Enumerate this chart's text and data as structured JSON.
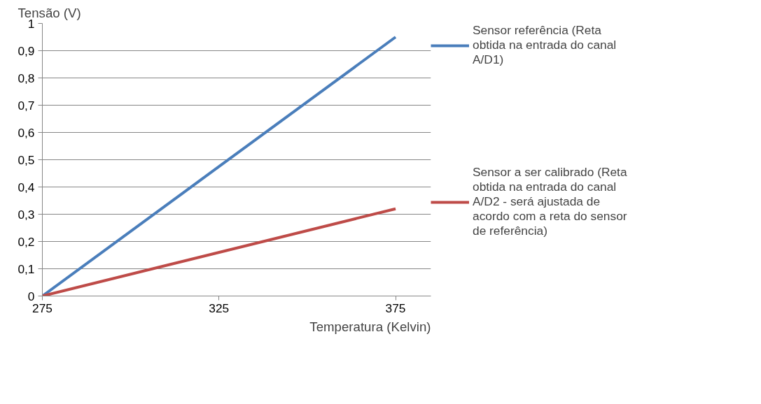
{
  "chart_data": {
    "type": "line",
    "xlabel": "Temperatura (Kelvin)",
    "ylabel": "Tensão (V)",
    "x": [
      275,
      375
    ],
    "series": [
      {
        "name": "Sensor referência (Reta obtida na entrada do canal A/D1)",
        "color": "#4a7ebb",
        "values": [
          0,
          0.95
        ]
      },
      {
        "name": "Sensor a ser calibrado (Reta obtida na entrada do canal A/D2 - será ajustada de acordo com a reta do sensor de referência)",
        "color": "#be4b48",
        "values": [
          0,
          0.32
        ]
      }
    ],
    "xlim": [
      275,
      385
    ],
    "ylim": [
      0,
      1
    ],
    "xticks": [
      275,
      325,
      375
    ],
    "yticks": [
      {
        "value": 0,
        "label": "0"
      },
      {
        "value": 0.1,
        "label": "0,1"
      },
      {
        "value": 0.2,
        "label": "0,2"
      },
      {
        "value": 0.3,
        "label": "0,3"
      },
      {
        "value": 0.4,
        "label": "0,4"
      },
      {
        "value": 0.5,
        "label": "0,5"
      },
      {
        "value": 0.6,
        "label": "0,6"
      },
      {
        "value": 0.7,
        "label": "0,7"
      },
      {
        "value": 0.8,
        "label": "0,8"
      },
      {
        "value": 0.9,
        "label": "0,9"
      },
      {
        "value": 1,
        "label": "1"
      }
    ],
    "grid": "y",
    "legend": "right",
    "marker": "none",
    "line_style": "solid"
  }
}
